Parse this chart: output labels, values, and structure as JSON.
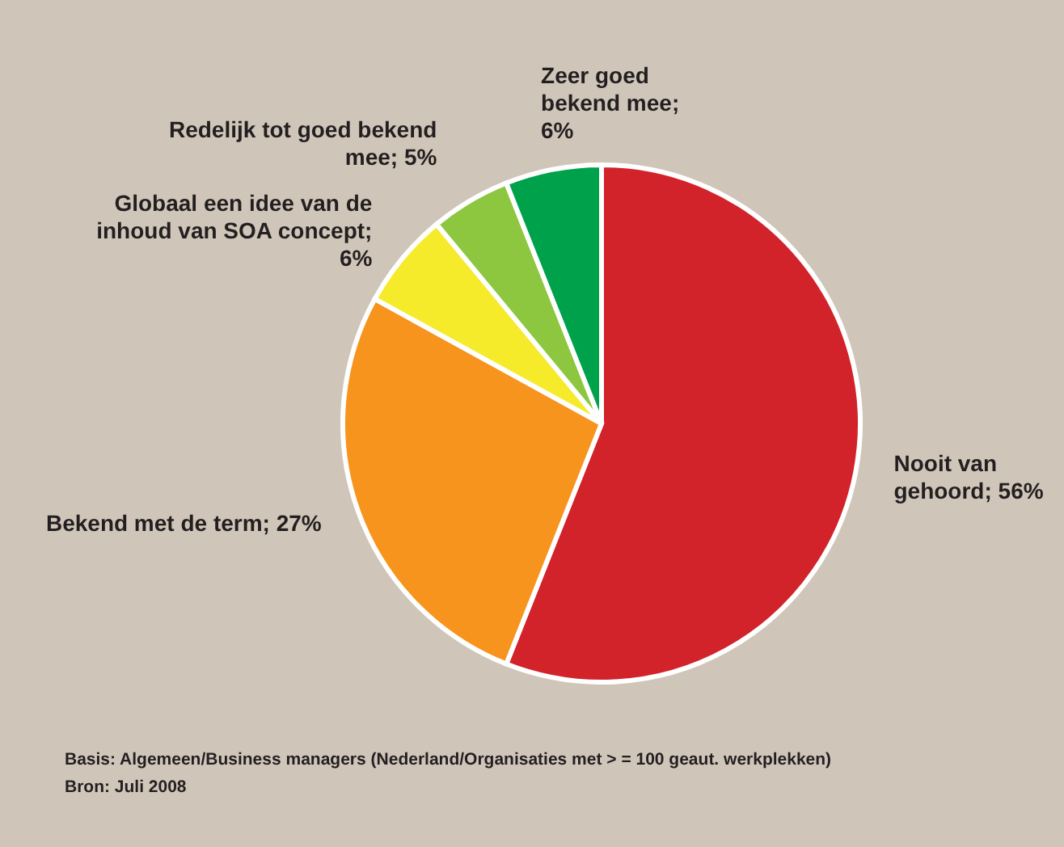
{
  "chart_data": {
    "type": "pie",
    "categories": [
      "Nooit van gehoord; 56%",
      "Bekend met de term; 27%",
      "Globaal een idee van de inhoud van SOA concept; 6%",
      "Redelijk tot goed bekend mee; 5%",
      "Zeer goed bekend mee; 6%"
    ],
    "values": [
      56,
      27,
      6,
      5,
      6
    ],
    "colors": [
      "#d2232a",
      "#f7941d",
      "#f5eb2a",
      "#8dc63f",
      "#00a14b"
    ],
    "annotations": [
      "Basis: Algemeen/Business managers (Nederland/Organisaties met > = 100 geaut. werkplekken)",
      "Bron: Juli 2008"
    ]
  }
}
